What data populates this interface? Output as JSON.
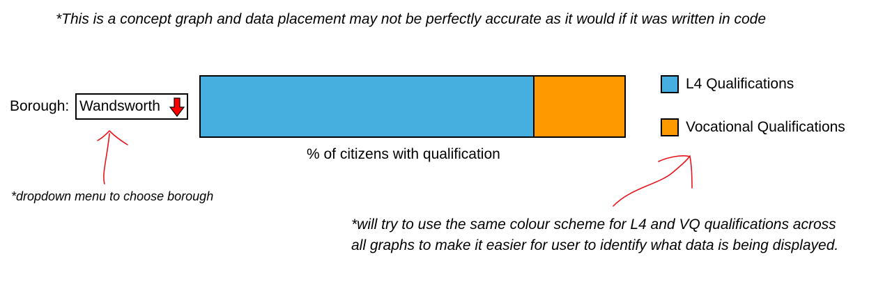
{
  "disclaimer": "*This is a concept graph and data placement may not be perfectly accurate as it would if it was written in code",
  "borough": {
    "label": "Borough:",
    "selected": "Wandsworth",
    "arrow_icon": "red-down-arrow-icon",
    "arrow_color": "#ff0000"
  },
  "chart_data": {
    "type": "bar",
    "orientation": "horizontal-stacked",
    "title": "",
    "xlabel": "% of citizens with qualification",
    "ylabel": "",
    "series": [
      {
        "name": "L4 Qualifications",
        "values": [
          78.5
        ],
        "color": "#46afe0"
      },
      {
        "name": "Vocational Qualifications",
        "values": [
          21.5
        ],
        "color": "#ff9900"
      }
    ],
    "xlim": [
      0,
      100
    ],
    "grid": false,
    "legend_placement": "right"
  },
  "legend": {
    "items": [
      {
        "label": "L4 Qualifications",
        "color": "#46afe0"
      },
      {
        "label": "Vocational Qualifications",
        "color": "#ff9900"
      }
    ]
  },
  "annotations": {
    "dropdown_note": "*dropdown menu to choose borough",
    "colour_note": "*will try to use the same colour scheme for L4 and VQ qualifications across all graphs to make it easier for user to identify what data is being displayed.",
    "arrow_color": "#e8141c"
  }
}
